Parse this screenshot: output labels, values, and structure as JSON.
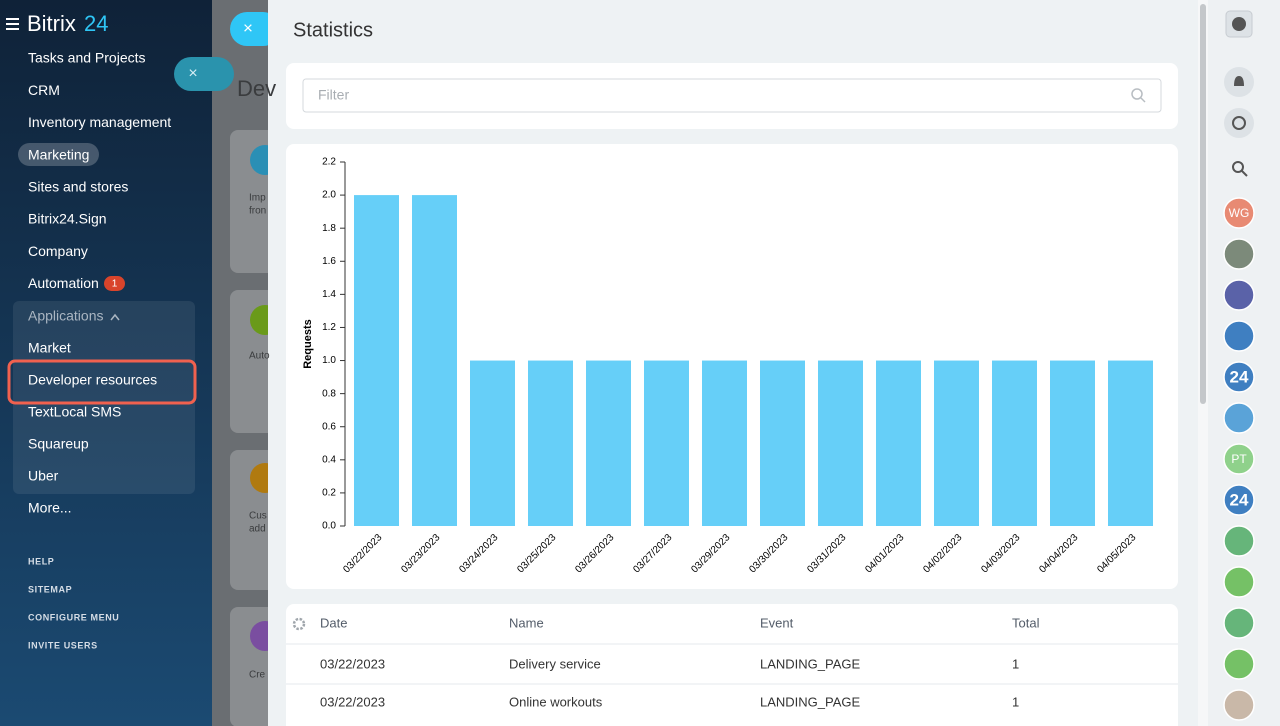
{
  "sidebar": {
    "logo": "Bitrix",
    "logo_num": "24",
    "items": [
      "Tasks and Projects",
      "CRM",
      "Inventory management",
      "Marketing",
      "Sites and stores",
      "Bitrix24.Sign",
      "Company",
      "Automation"
    ],
    "automation_badge": "1",
    "apps_header": "Applications",
    "apps": [
      "Market",
      "Developer resources",
      "TextLocal SMS",
      "Squareup",
      "Uber"
    ],
    "more": "More...",
    "footer": [
      "HELP",
      "SITEMAP",
      "CONFIGURE MENU",
      "INVITE USERS"
    ]
  },
  "background": {
    "heading": "Dev",
    "cards": [
      [
        "Imp",
        "fron"
      ],
      [
        "Auto"
      ],
      [
        "Cus",
        "add"
      ],
      [
        "Cre"
      ]
    ]
  },
  "panel": {
    "title": "Statistics",
    "filter_placeholder": "Filter"
  },
  "chart_data": {
    "type": "bar",
    "y_label": "Requests",
    "categories": [
      "03/22/2023",
      "03/23/2023",
      "03/24/2023",
      "03/25/2023",
      "03/26/2023",
      "03/27/2023",
      "03/29/2023",
      "03/30/2023",
      "03/31/2023",
      "04/01/2023",
      "04/02/2023",
      "04/03/2023",
      "04/04/2023",
      "04/05/2023"
    ],
    "values": [
      2,
      2,
      1,
      1,
      1,
      1,
      1,
      1,
      1,
      1,
      1,
      1,
      1,
      1
    ],
    "color": "#66cff8",
    "ylim": [
      0,
      2.2
    ],
    "yticks": [
      {
        "value": 0,
        "label": "0.0"
      },
      0.2,
      0.4,
      0.6,
      0.8,
      {
        "value": 1,
        "label": "1.0"
      },
      1.2,
      1.4,
      1.6,
      1.8,
      {
        "value": 2,
        "label": "2.0"
      },
      2.2
    ]
  },
  "table": {
    "columns": [
      "Date",
      "Name",
      "Event",
      "Total"
    ],
    "rows": [
      [
        "03/22/2023",
        "Delivery service",
        "LANDING_PAGE",
        1
      ],
      [
        "03/22/2023",
        "Online workouts",
        "LANDING_PAGE",
        1
      ]
    ]
  },
  "right_bar": {
    "labels": [
      "WG",
      "24",
      "PT",
      "24"
    ]
  }
}
